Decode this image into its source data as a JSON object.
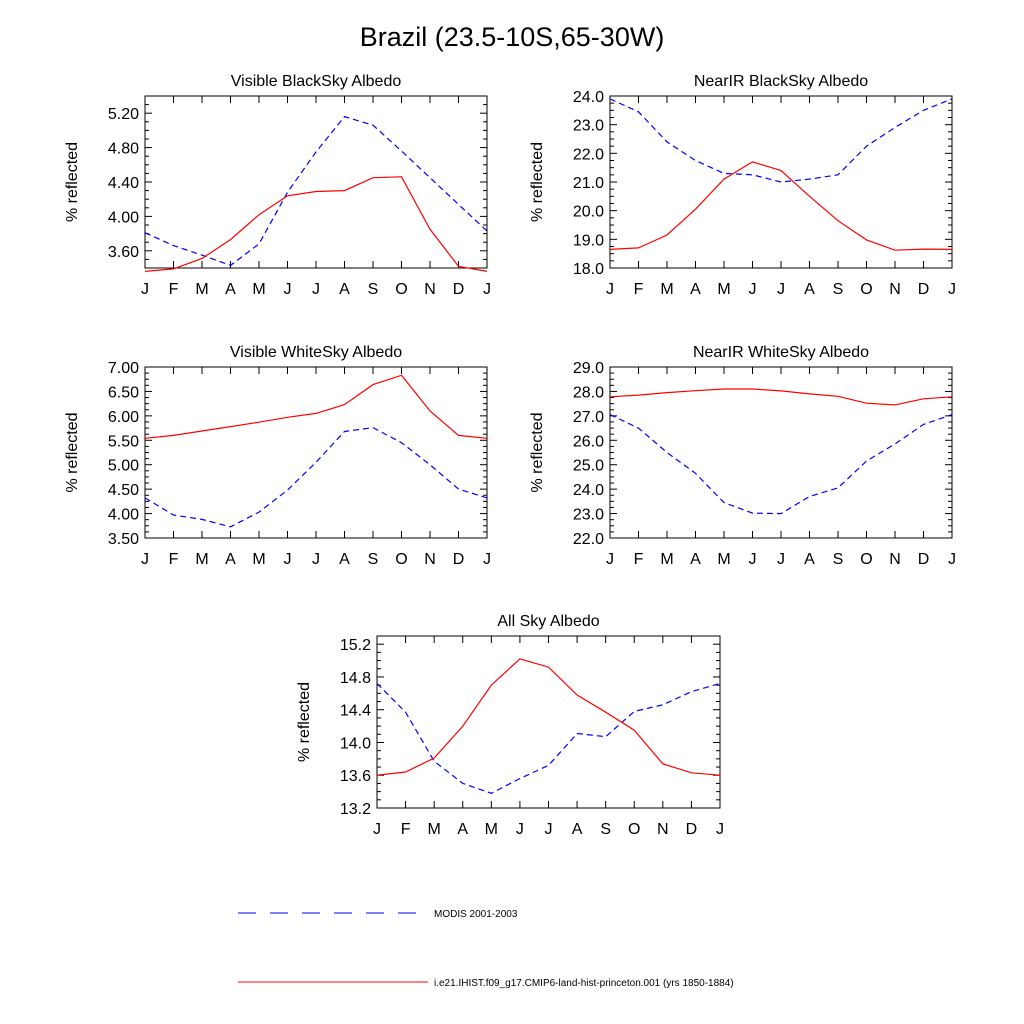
{
  "title": "Brazil (23.5-10S,65-30W)",
  "colors": {
    "modis": "#0000ff",
    "model": "#ff0000",
    "axis": "#000000"
  },
  "chart_data": [
    {
      "type": "line",
      "title": "Visible BlackSky Albedo",
      "ylabel": "% reflected",
      "x": [
        "J",
        "F",
        "M",
        "A",
        "M",
        "J",
        "J",
        "A",
        "S",
        "O",
        "N",
        "D",
        "J"
      ],
      "ylim": [
        3.4,
        5.4
      ],
      "yticks": [
        3.6,
        4.0,
        4.4,
        4.8,
        5.2
      ],
      "ytick_labels": [
        "3.60",
        "4.00",
        "4.40",
        "4.80",
        "5.20"
      ],
      "series": [
        {
          "name": "MODIS 2001-2003",
          "style": "dashed",
          "color": "#0000ff",
          "values": [
            3.81,
            3.66,
            3.55,
            3.43,
            3.68,
            4.28,
            4.75,
            5.16,
            5.06,
            4.76,
            4.45,
            4.14,
            3.83
          ]
        },
        {
          "name": "i.e21.IHIST.f09_g17.CMIP6-land-hist-princeton.001 (yrs 1850-1884)",
          "style": "solid",
          "color": "#ff0000",
          "values": [
            3.36,
            3.39,
            3.51,
            3.73,
            4.02,
            4.24,
            4.29,
            4.3,
            4.45,
            4.46,
            3.85,
            3.42,
            3.36
          ]
        }
      ]
    },
    {
      "type": "line",
      "title": "NearIR BlackSky Albedo",
      "ylabel": "% reflected",
      "x": [
        "J",
        "F",
        "M",
        "A",
        "M",
        "J",
        "J",
        "A",
        "S",
        "O",
        "N",
        "D",
        "J"
      ],
      "ylim": [
        18.0,
        24.0
      ],
      "yticks": [
        18.0,
        19.0,
        20.0,
        21.0,
        22.0,
        23.0,
        24.0
      ],
      "ytick_labels": [
        "18.0",
        "19.0",
        "20.0",
        "21.0",
        "22.0",
        "23.0",
        "24.0"
      ],
      "series": [
        {
          "name": "MODIS 2001-2003",
          "style": "dashed",
          "color": "#0000ff",
          "values": [
            23.9,
            23.45,
            22.4,
            21.75,
            21.3,
            21.25,
            21.0,
            21.1,
            21.25,
            22.25,
            22.9,
            23.5,
            23.9
          ]
        },
        {
          "name": "i.e21.IHIST.f09_g17.CMIP6-land-hist-princeton.001 (yrs 1850-1884)",
          "style": "solid",
          "color": "#ff0000",
          "values": [
            18.65,
            18.7,
            19.15,
            20.05,
            21.1,
            21.7,
            21.4,
            20.5,
            19.65,
            18.98,
            18.62,
            18.66,
            18.65
          ]
        }
      ]
    },
    {
      "type": "line",
      "title": "Visible WhiteSky Albedo",
      "ylabel": "% reflected",
      "x": [
        "J",
        "F",
        "M",
        "A",
        "M",
        "J",
        "J",
        "A",
        "S",
        "O",
        "N",
        "D",
        "J"
      ],
      "ylim": [
        3.5,
        7.0
      ],
      "yticks": [
        3.5,
        4.0,
        4.5,
        5.0,
        5.5,
        6.0,
        6.5,
        7.0
      ],
      "ytick_labels": [
        "3.50",
        "4.00",
        "4.50",
        "5.00",
        "5.50",
        "6.00",
        "6.50",
        "7.00"
      ],
      "series": [
        {
          "name": "MODIS 2001-2003",
          "style": "dashed",
          "color": "#0000ff",
          "values": [
            4.32,
            3.97,
            3.88,
            3.73,
            4.03,
            4.48,
            5.05,
            5.68,
            5.76,
            5.45,
            5.0,
            4.5,
            4.32
          ]
        },
        {
          "name": "i.e21.IHIST.f09_g17.CMIP6-land-hist-princeton.001 (yrs 1850-1884)",
          "style": "solid",
          "color": "#ff0000",
          "values": [
            5.54,
            5.6,
            5.69,
            5.78,
            5.87,
            5.97,
            6.05,
            6.23,
            6.64,
            6.83,
            6.1,
            5.6,
            5.54
          ]
        }
      ]
    },
    {
      "type": "line",
      "title": "NearIR WhiteSky Albedo",
      "ylabel": "% reflected",
      "x": [
        "J",
        "F",
        "M",
        "A",
        "M",
        "J",
        "J",
        "A",
        "S",
        "O",
        "N",
        "D",
        "J"
      ],
      "ylim": [
        22.0,
        29.0
      ],
      "yticks": [
        22.0,
        23.0,
        24.0,
        25.0,
        26.0,
        27.0,
        28.0,
        29.0
      ],
      "ytick_labels": [
        "22.0",
        "23.0",
        "24.0",
        "25.0",
        "26.0",
        "27.0",
        "28.0",
        "29.0"
      ],
      "series": [
        {
          "name": "MODIS 2001-2003",
          "style": "dashed",
          "color": "#0000ff",
          "values": [
            27.05,
            26.5,
            25.5,
            24.65,
            23.45,
            23.02,
            23.0,
            23.7,
            24.05,
            25.15,
            25.85,
            26.65,
            27.05
          ]
        },
        {
          "name": "i.e21.IHIST.f09_g17.CMIP6-land-hist-princeton.001 (yrs 1850-1884)",
          "style": "solid",
          "color": "#ff0000",
          "values": [
            27.78,
            27.85,
            27.95,
            28.03,
            28.1,
            28.1,
            28.02,
            27.9,
            27.8,
            27.52,
            27.45,
            27.7,
            27.78
          ]
        }
      ]
    },
    {
      "type": "line",
      "title": "All Sky Albedo",
      "ylabel": "% reflected",
      "x": [
        "J",
        "F",
        "M",
        "A",
        "M",
        "J",
        "J",
        "A",
        "S",
        "O",
        "N",
        "D",
        "J"
      ],
      "ylim": [
        13.2,
        15.3
      ],
      "yticks": [
        13.2,
        13.6,
        14.0,
        14.4,
        14.8,
        15.2
      ],
      "ytick_labels": [
        "13.2",
        "13.6",
        "14.0",
        "14.4",
        "14.8",
        "15.2"
      ],
      "series": [
        {
          "name": "MODIS 2001-2003",
          "style": "dashed",
          "color": "#0000ff",
          "values": [
            14.72,
            14.37,
            13.77,
            13.5,
            13.38,
            13.56,
            13.72,
            14.11,
            14.07,
            14.38,
            14.46,
            14.62,
            14.72
          ]
        },
        {
          "name": "i.e21.IHIST.f09_g17.CMIP6-land-hist-princeton.001 (yrs 1850-1884)",
          "style": "solid",
          "color": "#ff0000",
          "values": [
            13.6,
            13.64,
            13.81,
            14.2,
            14.7,
            15.02,
            14.92,
            14.58,
            14.37,
            14.15,
            13.74,
            13.63,
            13.6
          ]
        }
      ]
    }
  ],
  "legend": [
    {
      "label": "MODIS 2001-2003",
      "style": "dashed",
      "color": "#0000ff"
    },
    {
      "label": "i.e21.IHIST.f09_g17.CMIP6-land-hist-princeton.001 (yrs 1850-1884)",
      "style": "solid",
      "color": "#ff0000"
    }
  ]
}
